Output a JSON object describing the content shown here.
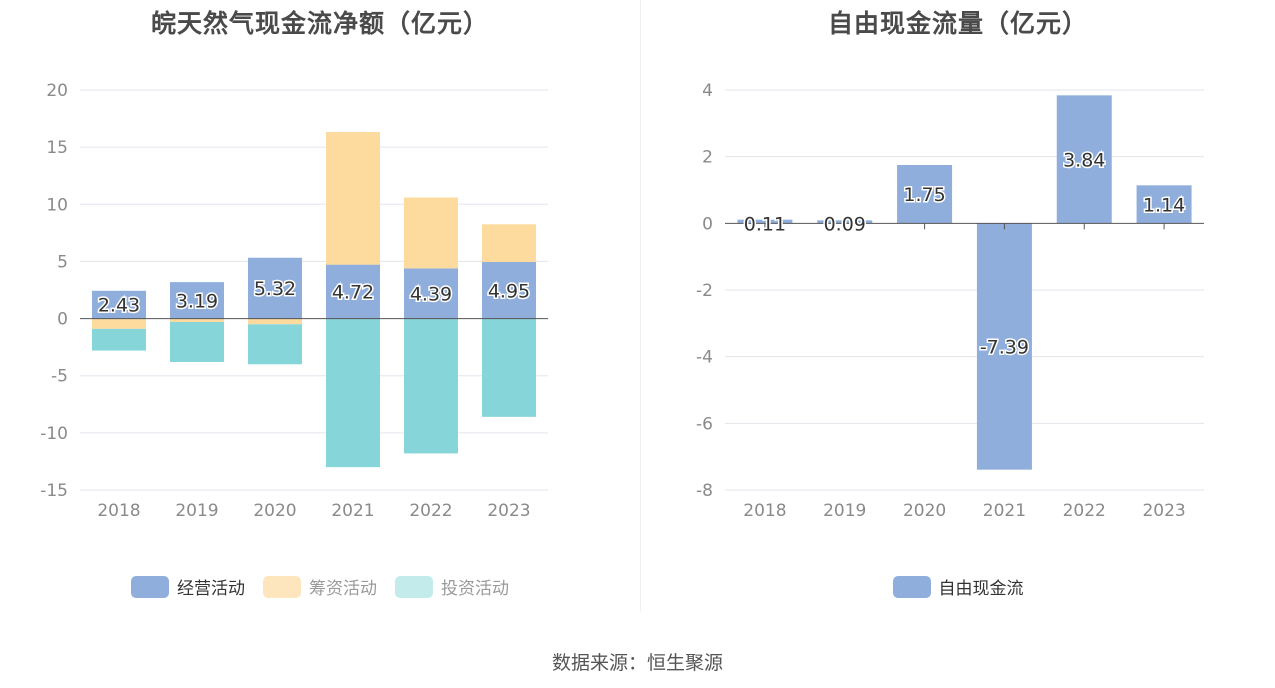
{
  "source_text": "数据来源：恒生聚源",
  "colors": {
    "operating": "#8FAEDC",
    "financing": "#FDDB9E",
    "investing": "#86D5D8",
    "fcf": "#8FAEDC",
    "grid": "#E2E5EC",
    "axis_text": "#8a8a8a",
    "zero_line": "#555555"
  },
  "chart_data": [
    {
      "type": "bar",
      "stacked": true,
      "title": "皖天然气现金流净额（亿元）",
      "categories": [
        "2018",
        "2019",
        "2020",
        "2021",
        "2022",
        "2023"
      ],
      "series": [
        {
          "name": "经营活动",
          "values": [
            2.43,
            3.19,
            5.32,
            4.72,
            4.39,
            4.95
          ],
          "labels": [
            "2.43",
            "3.19",
            "5.32",
            "4.72",
            "4.39",
            "4.95"
          ]
        },
        {
          "name": "筹资活动",
          "values": [
            -0.9,
            -0.3,
            -0.5,
            11.6,
            6.2,
            3.3
          ]
        },
        {
          "name": "投资活动",
          "values": [
            -1.9,
            -3.5,
            -3.5,
            -13.0,
            -11.8,
            -8.6
          ]
        }
      ],
      "ylim": [
        -15,
        20
      ],
      "yticks": [
        "20",
        "15",
        "10",
        "5",
        "0",
        "-5",
        "-10",
        "-15"
      ],
      "ytick_values": [
        20,
        15,
        10,
        5,
        0,
        -5,
        -10,
        -15
      ],
      "legend": "bottom"
    },
    {
      "type": "bar",
      "title": "自由现金流量（亿元）",
      "categories": [
        "2018",
        "2019",
        "2020",
        "2021",
        "2022",
        "2023"
      ],
      "series": [
        {
          "name": "自由现金流",
          "values": [
            0.11,
            0.09,
            1.75,
            -7.39,
            3.84,
            1.14
          ],
          "labels": [
            "0.11",
            "0.09",
            "1.75",
            "-7.39",
            "3.84",
            "1.14"
          ]
        }
      ],
      "ylim": [
        -8,
        4
      ],
      "yticks": [
        "4",
        "2",
        "0",
        "-2",
        "-4",
        "-6",
        "-8"
      ],
      "ytick_values": [
        4,
        2,
        0,
        -2,
        -4,
        -6,
        -8
      ],
      "legend": "bottom"
    }
  ]
}
